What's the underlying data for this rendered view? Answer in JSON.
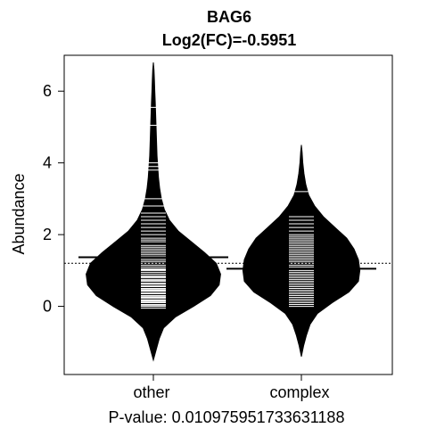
{
  "chart_data": {
    "type": "beanplot",
    "title": "BAG6",
    "subtitle": "Log2(FC)=-0.5951",
    "xlabel": "P-value: 0.010975951733631188",
    "ylabel": "Abundance",
    "ylim": [
      -1.9,
      7.0
    ],
    "yticks": [
      0,
      2,
      4,
      6
    ],
    "categories": [
      "other",
      "complex"
    ],
    "overall_mean": 1.2,
    "groups": [
      {
        "name": "other",
        "mean": 1.37,
        "min": -1.5,
        "max": 6.8,
        "density": [
          [
            -1.5,
            0.0
          ],
          [
            -1.2,
            0.04
          ],
          [
            -0.9,
            0.08
          ],
          [
            -0.6,
            0.14
          ],
          [
            -0.3,
            0.3
          ],
          [
            0.0,
            0.55
          ],
          [
            0.3,
            0.78
          ],
          [
            0.6,
            0.9
          ],
          [
            0.9,
            0.92
          ],
          [
            1.2,
            0.86
          ],
          [
            1.5,
            0.7
          ],
          [
            1.8,
            0.52
          ],
          [
            2.1,
            0.34
          ],
          [
            2.4,
            0.22
          ],
          [
            2.7,
            0.15
          ],
          [
            3.0,
            0.11
          ],
          [
            3.3,
            0.085
          ],
          [
            3.6,
            0.07
          ],
          [
            3.9,
            0.06
          ],
          [
            4.2,
            0.05
          ],
          [
            4.5,
            0.045
          ],
          [
            4.8,
            0.04
          ],
          [
            5.1,
            0.035
          ],
          [
            5.4,
            0.03
          ],
          [
            5.7,
            0.025
          ],
          [
            6.0,
            0.02
          ],
          [
            6.3,
            0.015
          ],
          [
            6.6,
            0.008
          ],
          [
            6.8,
            0.0
          ]
        ],
        "points": [
          -0.05,
          0.0,
          0.02,
          0.05,
          0.1,
          0.12,
          0.15,
          0.18,
          0.22,
          0.25,
          0.28,
          0.3,
          0.35,
          0.38,
          0.42,
          0.45,
          0.48,
          0.5,
          0.55,
          0.58,
          0.62,
          0.65,
          0.7,
          0.72,
          0.75,
          0.8,
          0.82,
          0.85,
          0.9,
          0.95,
          1.0,
          1.02,
          1.05,
          1.1,
          1.15,
          1.2,
          1.25,
          1.3,
          1.35,
          1.4,
          1.45,
          1.5,
          1.55,
          1.6,
          1.65,
          1.7,
          1.8,
          1.85,
          1.9,
          2.0,
          2.1,
          2.2,
          2.3,
          2.4,
          2.5,
          2.6,
          2.8,
          3.0,
          3.8,
          3.9,
          4.0,
          5.05,
          5.55
        ]
      },
      {
        "name": "complex",
        "mean": 1.05,
        "min": -1.4,
        "max": 4.5,
        "density": [
          [
            -1.4,
            0.0
          ],
          [
            -1.1,
            0.03
          ],
          [
            -0.8,
            0.07
          ],
          [
            -0.5,
            0.12
          ],
          [
            -0.2,
            0.22
          ],
          [
            0.1,
            0.42
          ],
          [
            0.4,
            0.65
          ],
          [
            0.7,
            0.78
          ],
          [
            1.0,
            0.8
          ],
          [
            1.3,
            0.78
          ],
          [
            1.6,
            0.72
          ],
          [
            1.9,
            0.62
          ],
          [
            2.2,
            0.46
          ],
          [
            2.5,
            0.3
          ],
          [
            2.8,
            0.18
          ],
          [
            3.1,
            0.1
          ],
          [
            3.4,
            0.06
          ],
          [
            3.7,
            0.035
          ],
          [
            4.0,
            0.02
          ],
          [
            4.3,
            0.01
          ],
          [
            4.5,
            0.0
          ]
        ],
        "points": [
          0.0,
          0.05,
          0.1,
          0.15,
          0.2,
          0.25,
          0.3,
          0.35,
          0.4,
          0.45,
          0.5,
          0.55,
          0.6,
          0.65,
          0.7,
          0.75,
          0.8,
          0.85,
          0.9,
          0.95,
          1.0,
          1.05,
          1.1,
          1.15,
          1.2,
          1.25,
          1.3,
          1.35,
          1.4,
          1.45,
          1.5,
          1.55,
          1.6,
          1.65,
          1.7,
          1.75,
          1.8,
          1.85,
          1.9,
          1.95,
          2.0,
          2.1,
          2.2,
          2.3,
          2.4,
          2.5,
          3.2
        ]
      }
    ]
  }
}
